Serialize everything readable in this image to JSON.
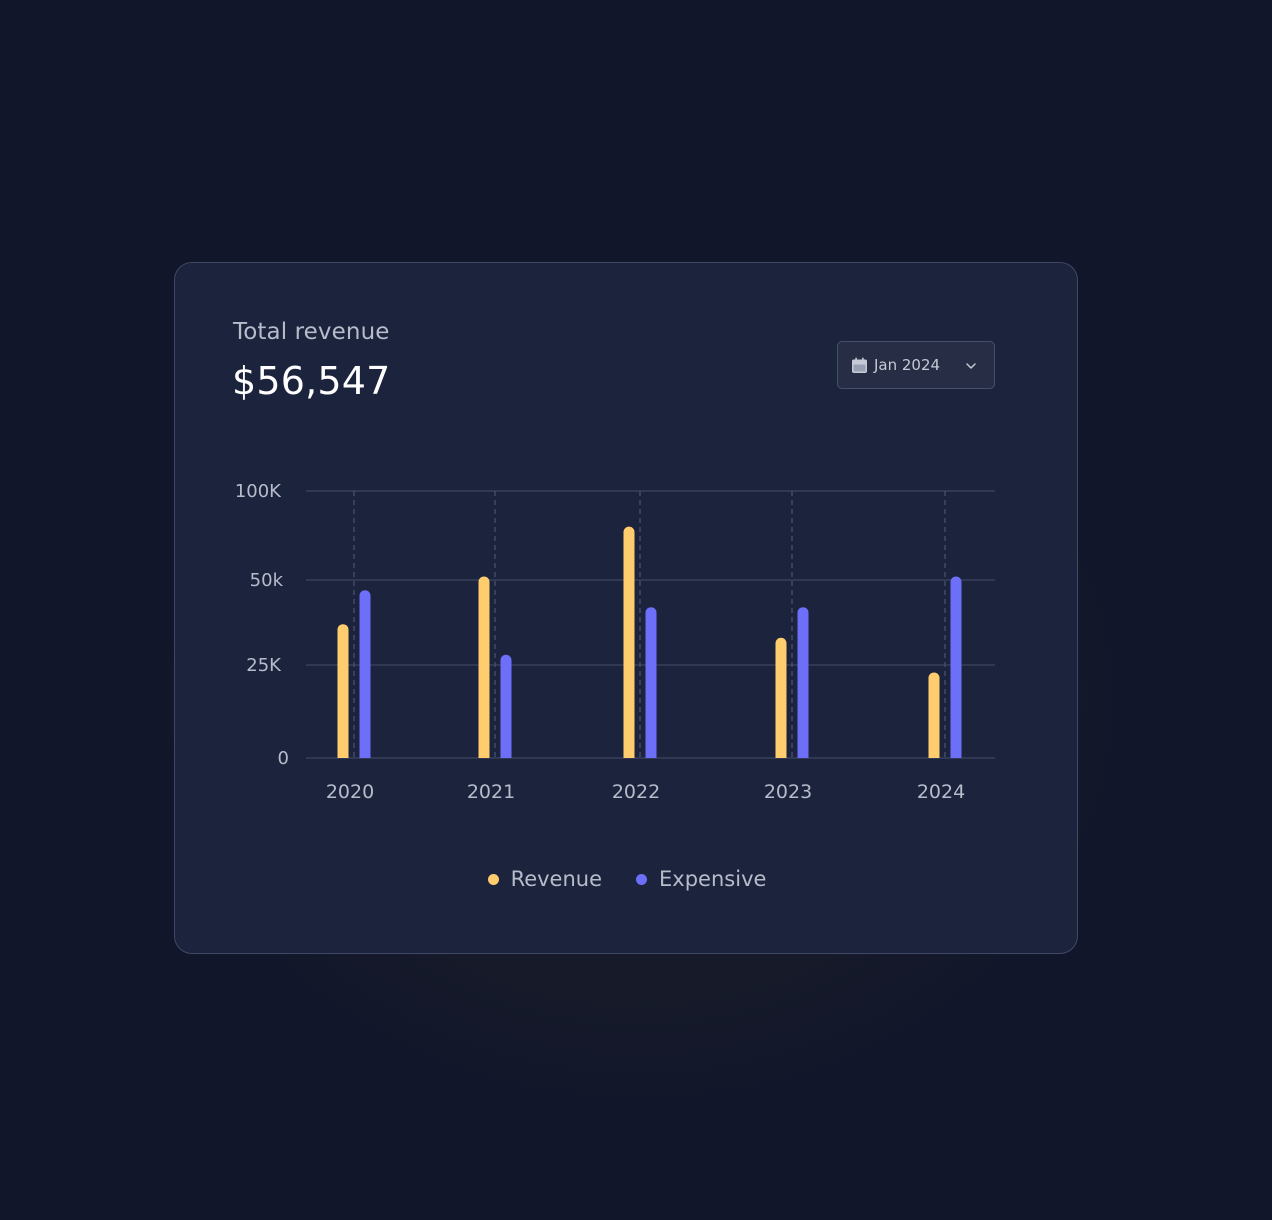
{
  "card": {
    "title": "Total revenue",
    "amount": "$56,547"
  },
  "date_picker": {
    "value": "Jan 2024",
    "icon": "calendar-icon",
    "chevron": "chevron-down-icon"
  },
  "colors": {
    "revenue": "#ffcd6e",
    "expensive": "#6d6ff9",
    "grid": "#3e4663",
    "card": "#1c233c"
  },
  "chart_data": {
    "type": "bar",
    "categories": [
      "2020",
      "2021",
      "2022",
      "2023",
      "2024"
    ],
    "y_ticks": [
      {
        "value": 0,
        "label": "0"
      },
      {
        "value": 25000,
        "label": "25K"
      },
      {
        "value": 50000,
        "label": "50k"
      },
      {
        "value": 100000,
        "label": "100K"
      }
    ],
    "y_scale_note": "non-linear axis: 0, 25K, 50k, 100K",
    "series": [
      {
        "name": "Revenue",
        "color": "#ffcd6e",
        "values": [
          37000,
          52000,
          80000,
          33000,
          23000
        ]
      },
      {
        "name": "Expensive",
        "color": "#6d6ff9",
        "values": [
          47000,
          28000,
          42000,
          42000,
          52000
        ]
      }
    ],
    "ylim": [
      0,
      100000
    ],
    "grid": true,
    "legend_placement": "bottom-center"
  }
}
